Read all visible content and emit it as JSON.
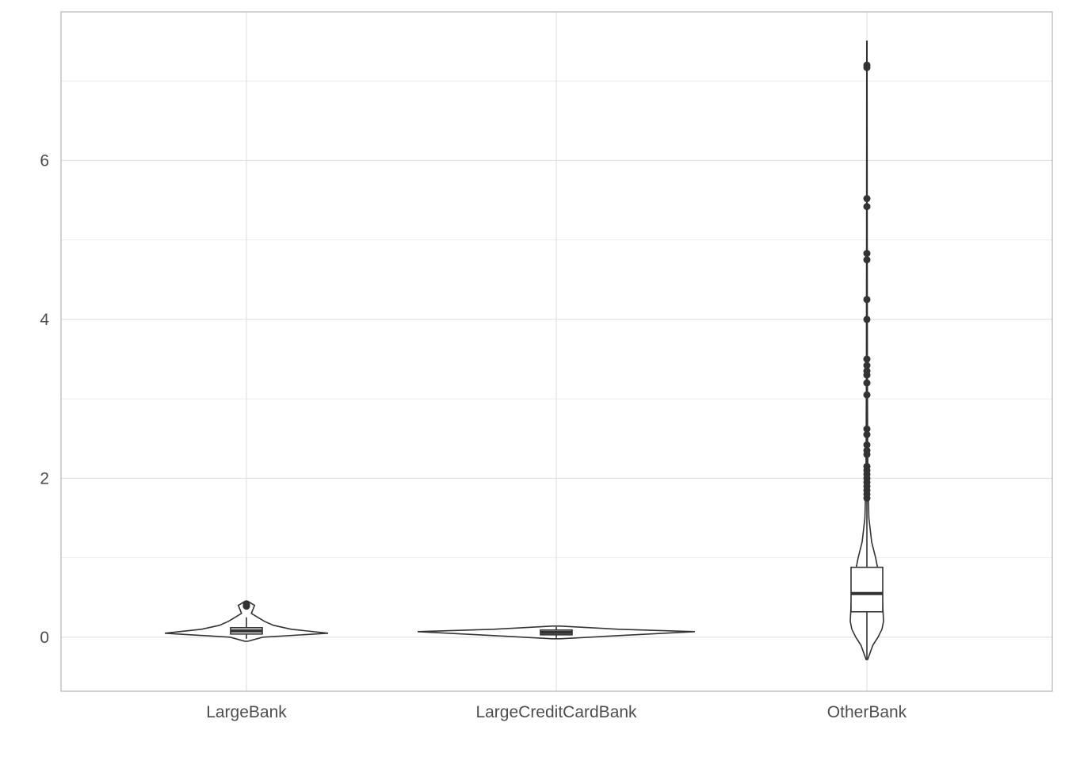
{
  "chart_data": {
    "type": "violin+boxplot",
    "title": "",
    "xlabel": "",
    "ylabel": "",
    "categories": [
      "LargeBank",
      "LargeCreditCardBank",
      "OtherBank"
    ],
    "ylim": [
      -0.68,
      7.87
    ],
    "yticks": [
      0,
      2,
      4,
      6
    ],
    "ytick_labels": [
      "0",
      "2",
      "4",
      "6"
    ],
    "grid": true,
    "legend": "none",
    "colors": {
      "line": "#333333",
      "fill": "#ffffff",
      "grid": "#dedede",
      "border": "#b3b3b3",
      "text": "#4d4d4d"
    },
    "groups": [
      {
        "name": "LargeBank",
        "violin": {
          "min": -0.05,
          "max": 0.45,
          "profile": [
            [
              -0.05,
              0.02
            ],
            [
              0.0,
              0.2
            ],
            [
              0.05,
              1.0
            ],
            [
              0.1,
              0.55
            ],
            [
              0.15,
              0.33
            ],
            [
              0.2,
              0.22
            ],
            [
              0.25,
              0.14
            ],
            [
              0.3,
              0.06
            ],
            [
              0.35,
              0.08
            ],
            [
              0.4,
              0.1
            ],
            [
              0.45,
              0.02
            ]
          ]
        },
        "box": {
          "q1": 0.04,
          "median": 0.08,
          "q3": 0.12
        },
        "whiskers": [
          -0.02,
          0.25
        ],
        "outliers": [
          0.39,
          0.4,
          0.41,
          0.42
        ]
      },
      {
        "name": "LargeCreditCardBank",
        "violin": {
          "min": -0.02,
          "max": 0.14,
          "profile": [
            [
              -0.02,
              0.03
            ],
            [
              0.02,
              0.45
            ],
            [
              0.07,
              1.0
            ],
            [
              0.1,
              0.45
            ],
            [
              0.14,
              0.03
            ]
          ]
        },
        "box": {
          "q1": 0.03,
          "median": 0.06,
          "q3": 0.09
        },
        "whiskers": [
          -0.01,
          0.13
        ],
        "outliers": []
      },
      {
        "name": "OtherBank",
        "violin": {
          "min": -0.28,
          "max": 7.5,
          "profile": [
            [
              -0.28,
              0.02
            ],
            [
              -0.1,
              0.15
            ],
            [
              0.0,
              0.28
            ],
            [
              0.1,
              0.38
            ],
            [
              0.2,
              0.42
            ],
            [
              0.4,
              0.4
            ],
            [
              0.6,
              0.38
            ],
            [
              0.8,
              0.3
            ],
            [
              1.0,
              0.22
            ],
            [
              1.2,
              0.12
            ],
            [
              1.5,
              0.05
            ],
            [
              2.0,
              0.025
            ],
            [
              2.5,
              0.018
            ],
            [
              3.5,
              0.012
            ],
            [
              5.0,
              0.008
            ],
            [
              7.5,
              0.004
            ]
          ]
        },
        "box": {
          "q1": 0.32,
          "median": 0.55,
          "q3": 0.88
        },
        "whiskers": [
          -0.28,
          1.7
        ],
        "outliers": [
          1.75,
          1.8,
          1.85,
          1.9,
          1.95,
          2.0,
          2.05,
          2.1,
          2.15,
          2.3,
          2.35,
          2.42,
          2.55,
          2.62,
          3.05,
          3.2,
          3.3,
          3.35,
          3.42,
          3.5,
          4.0,
          4.25,
          4.75,
          4.83,
          5.42,
          5.52,
          7.17,
          7.2
        ]
      }
    ]
  }
}
